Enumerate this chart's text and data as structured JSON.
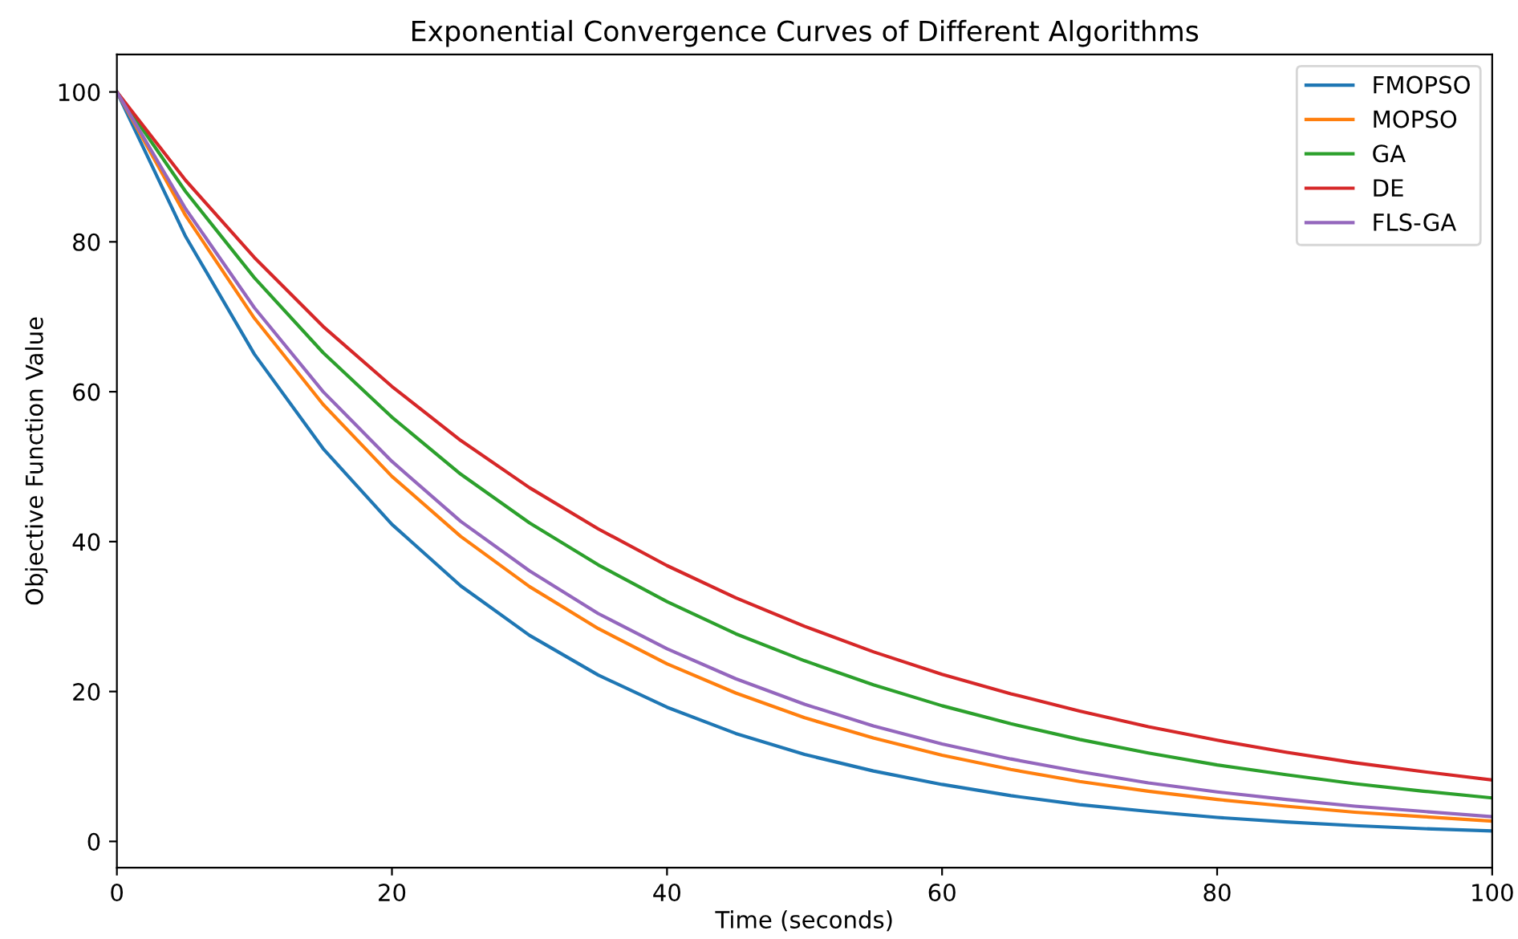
{
  "chart_data": {
    "type": "line",
    "title": "Exponential Convergence Curves of Different Algorithms",
    "xlabel": "Time (seconds)",
    "ylabel": "Objective Function Value",
    "x": [
      0,
      5,
      10,
      15,
      20,
      25,
      30,
      35,
      40,
      45,
      50,
      55,
      60,
      65,
      70,
      75,
      80,
      85,
      90,
      95,
      100
    ],
    "series": [
      {
        "name": "FMOPSO",
        "color": "#1f77b4",
        "values": [
          100,
          80.7,
          65.0,
          52.4,
          42.3,
          34.1,
          27.5,
          22.2,
          17.9,
          14.4,
          11.6,
          9.4,
          7.6,
          6.1,
          4.9,
          4.0,
          3.2,
          2.6,
          2.1,
          1.7,
          1.4
        ]
      },
      {
        "name": "MOPSO",
        "color": "#ff7f0e",
        "values": [
          100,
          83.5,
          69.8,
          58.3,
          48.7,
          40.7,
          34.0,
          28.4,
          23.7,
          19.8,
          16.5,
          13.8,
          11.5,
          9.6,
          8.0,
          6.7,
          5.6,
          4.7,
          3.9,
          3.3,
          2.7
        ]
      },
      {
        "name": "GA",
        "color": "#2ca02c",
        "values": [
          100,
          86.7,
          75.2,
          65.2,
          56.6,
          49.0,
          42.5,
          36.9,
          32.0,
          27.7,
          24.1,
          20.9,
          18.1,
          15.7,
          13.6,
          11.8,
          10.2,
          8.9,
          7.7,
          6.7,
          5.8
        ]
      },
      {
        "name": "DE",
        "color": "#d62728",
        "values": [
          100,
          88.2,
          77.9,
          68.7,
          60.7,
          53.5,
          47.2,
          41.7,
          36.8,
          32.5,
          28.7,
          25.3,
          22.3,
          19.7,
          17.4,
          15.3,
          13.5,
          11.9,
          10.5,
          9.3,
          8.2
        ]
      },
      {
        "name": "FLS-GA",
        "color": "#9467bd",
        "values": [
          100,
          84.4,
          71.2,
          60.0,
          50.7,
          42.7,
          36.1,
          30.4,
          25.7,
          21.7,
          18.3,
          15.4,
          13.0,
          11.0,
          9.3,
          7.8,
          6.6,
          5.6,
          4.7,
          4.0,
          3.3
        ]
      }
    ],
    "xlim": [
      0,
      100
    ],
    "xticks": [
      0,
      20,
      40,
      60,
      80,
      100
    ],
    "ylim": [
      -3.5,
      105
    ],
    "yticks": [
      0,
      20,
      40,
      60,
      80,
      100
    ],
    "legend": "upper right",
    "grid": false
  }
}
